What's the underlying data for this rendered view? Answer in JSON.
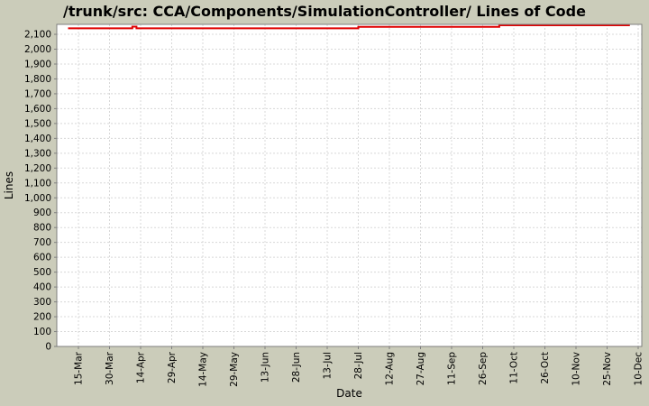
{
  "title": "/trunk/src: CCA/Components/SimulationController/ Lines of Code",
  "colors": {
    "background": "#cbccba",
    "plot_background": "#ffffff",
    "plot_border": "#7f7f7f",
    "gridline": "#d8d8d8",
    "tick_mark": "#7f7f7f",
    "series_red": "#df0000",
    "text": "#000000"
  },
  "chart_data": {
    "type": "line",
    "title": "/trunk/src: CCA/Components/SimulationController/ Lines of Code",
    "xlabel": "Date",
    "ylabel": "Lines",
    "grid": "dashed",
    "legend": "none",
    "x_tick_labels": [
      "15-Mar",
      "30-Mar",
      "14-Apr",
      "29-Apr",
      "14-May",
      "29-May",
      "13-Jun",
      "28-Jun",
      "13-Jul",
      "28-Jul",
      "12-Aug",
      "27-Aug",
      "11-Sep",
      "26-Sep",
      "11-Oct",
      "26-Oct",
      "10-Nov",
      "25-Nov",
      "10-Dec"
    ],
    "x_tick_interval_days": 15,
    "y_tick_values": [
      0,
      100,
      200,
      300,
      400,
      500,
      600,
      700,
      800,
      900,
      1000,
      1100,
      1200,
      1300,
      1400,
      1500,
      1600,
      1700,
      1800,
      1900,
      2000,
      2100
    ],
    "y_tick_labels": [
      "0",
      "100",
      "200",
      "300",
      "400",
      "500",
      "600",
      "700",
      "800",
      "900",
      "1,000",
      "1,100",
      "1,200",
      "1,300",
      "1,400",
      "1,500",
      "1,600",
      "1,700",
      "1,800",
      "1,900",
      "2,000",
      "2,100"
    ],
    "ylim": [
      0,
      2167
    ],
    "series": [
      {
        "name": "Lines of Code",
        "color": "#df0000",
        "note": "step line; d = days relative to 15-Mar tick",
        "points": [
          {
            "d": -5,
            "v": 2140
          },
          {
            "d": 26,
            "v": 2140
          },
          {
            "d": 26,
            "v": 2152
          },
          {
            "d": 28,
            "v": 2152
          },
          {
            "d": 28,
            "v": 2140
          },
          {
            "d": 135,
            "v": 2140
          },
          {
            "d": 135,
            "v": 2150
          },
          {
            "d": 203,
            "v": 2150
          },
          {
            "d": 203,
            "v": 2161
          },
          {
            "d": 266,
            "v": 2161
          }
        ]
      }
    ]
  }
}
